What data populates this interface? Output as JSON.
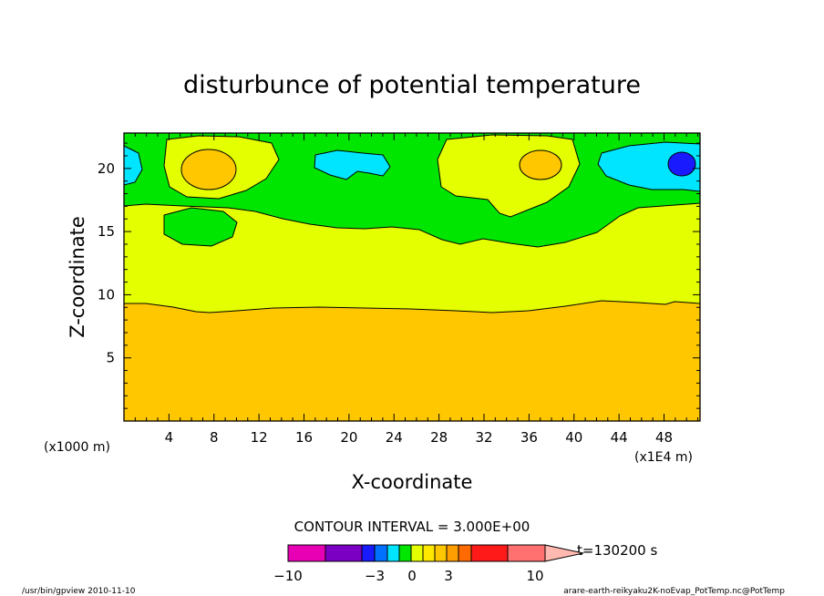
{
  "chart_data": {
    "type": "heatmap",
    "title": "disturbunce of potential temperature",
    "xlabel": "X-coordinate",
    "ylabel": "Z-coordinate",
    "xunit": "(x1E4 m)",
    "yunit": "(x1000 m)",
    "xlim": [
      0,
      51.2
    ],
    "ylim": [
      0,
      22.8
    ],
    "xticks": [
      "4",
      "8",
      "12",
      "16",
      "20",
      "24",
      "28",
      "32",
      "36",
      "40",
      "44",
      "48"
    ],
    "yticks": [
      "5",
      "10",
      "15",
      "20"
    ],
    "contour_interval_label": "CONTOUR INTERVAL = 3.000E+00",
    "time_label": "t=130200 s",
    "colorbar_labels": [
      "−10",
      "−3",
      "0",
      "3",
      "10"
    ],
    "colorbar_colors": [
      "#e800b5",
      "#7b00c4",
      "#1a1aff",
      "#0070ff",
      "#00e5ff",
      "#00e600",
      "#e3ff00",
      "#ffe800",
      "#ffc700",
      "#ff9e00",
      "#ff6b00",
      "#ff1a1a",
      "#ff7070",
      "#ffb9b0"
    ],
    "regions_description": {
      "lower_layer_z_below_9": "3 to 6 (orange)",
      "middle_layer_z_9_to_15": "0 to 3 (yellow)",
      "upper_layer_z_above_15": "-3 to 0 (green) with cells of -6 to -3 (cyan), -9 to -6 (blue), 0 to 3 (yellow), 3 to 6 (orange)"
    },
    "grid": false
  },
  "footer": {
    "left": "/usr/bin/gpview  2010-11-10",
    "right": "arare-earth-reikyaku2K-noEvap_PotTemp.nc@PotTemp"
  }
}
